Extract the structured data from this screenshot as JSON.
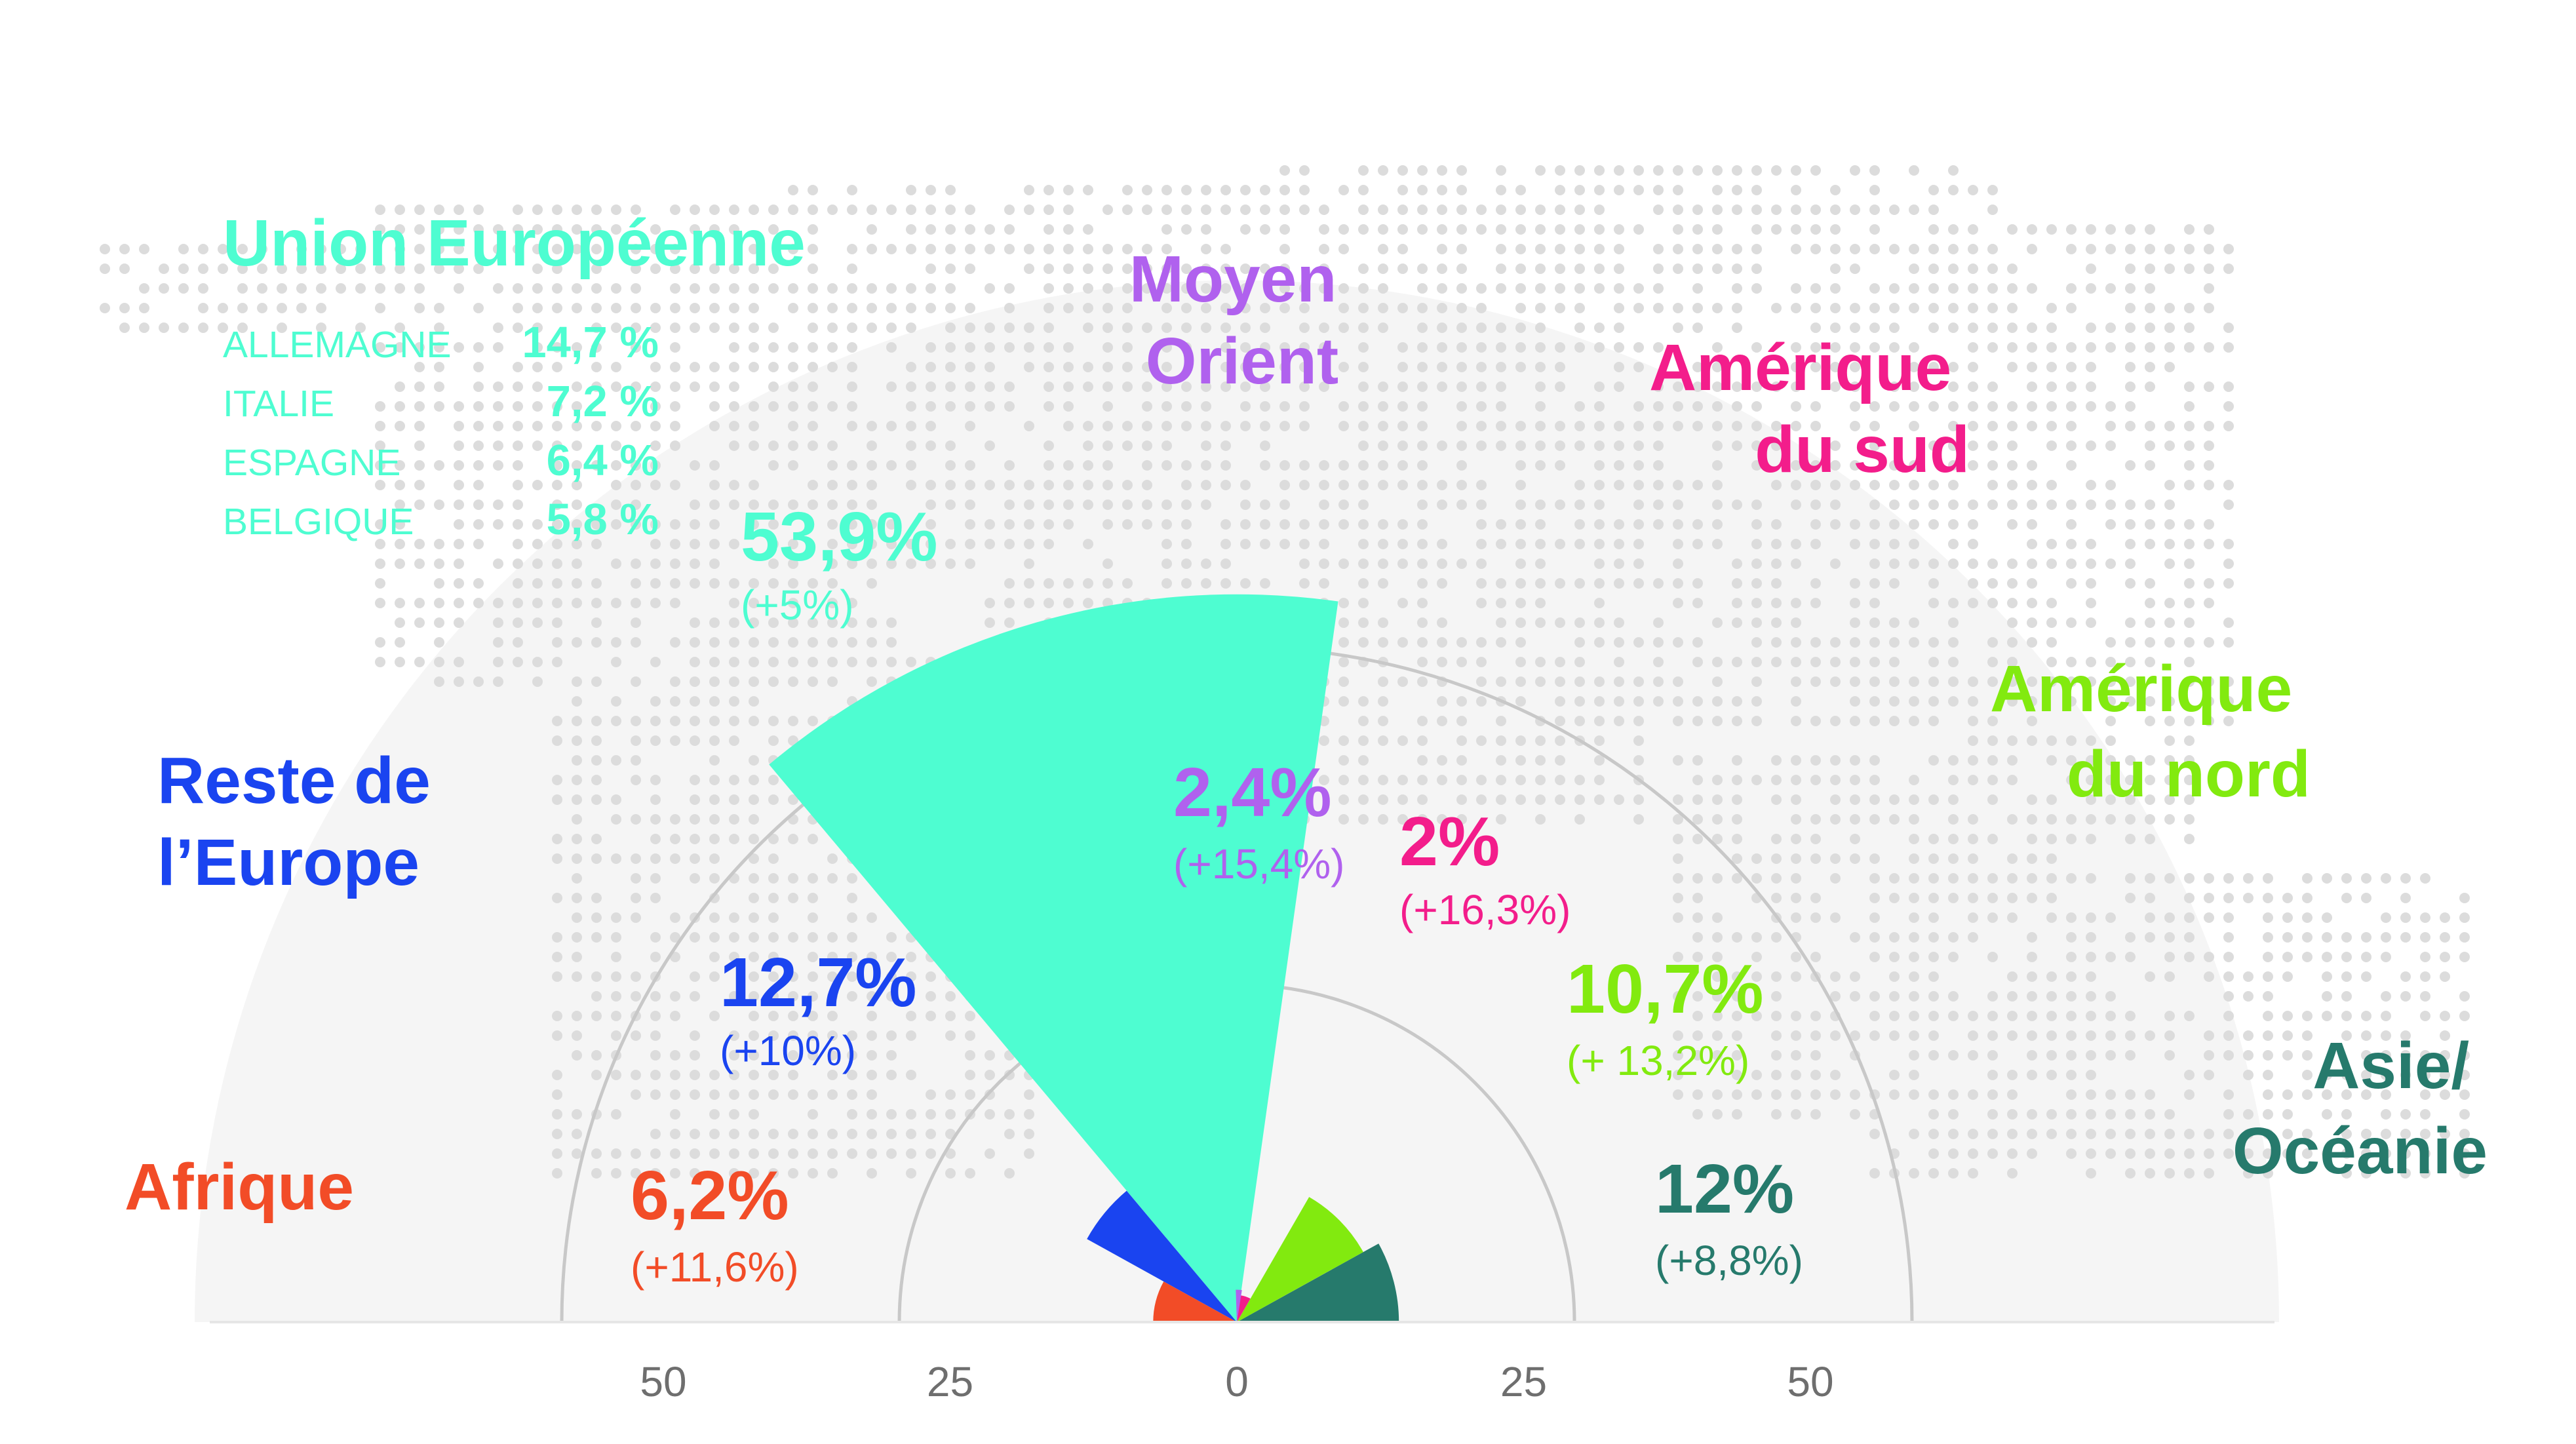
{
  "chart_data": {
    "type": "polar-area",
    "radial_ticks": [
      "50",
      "25",
      "0",
      "25",
      "50"
    ],
    "segments": [
      {
        "id": "afrique",
        "region": [
          "Afrique"
        ],
        "value": 6.2,
        "label": "6,2%",
        "change": "(+11,6%)",
        "color": "#f24c27"
      },
      {
        "id": "reste-europe",
        "region": [
          "Reste de",
          "l’Europe"
        ],
        "value": 12.7,
        "label": "12,7%",
        "change": "(+10%)",
        "color": "#1a44f0"
      },
      {
        "id": "ue",
        "region": [
          "Union Européenne"
        ],
        "value": 53.9,
        "label": "53,9%",
        "change": "(+5%)",
        "color": "#4efdd1"
      },
      {
        "id": "moyen-orient",
        "region": [
          "Moyen",
          "Orient"
        ],
        "value": 2.4,
        "label": "2,4%",
        "change": "(+15,4%)",
        "color": "#b061ee"
      },
      {
        "id": "amerique-sud",
        "region": [
          "Amérique",
          "du sud"
        ],
        "value": 2,
        "label": "2%",
        "change": "(+16,3%)",
        "color": "#f31d8b"
      },
      {
        "id": "amerique-nord",
        "region": [
          "Amérique",
          "du nord"
        ],
        "value": 10.7,
        "label": "10,7%",
        "change": "(+ 13,2%)",
        "color": "#82ea0f"
      },
      {
        "id": "asie-oceanie",
        "region": [
          "Asie/",
          "Océanie"
        ],
        "value": 12,
        "label": "12%",
        "change": "(+8,8%)",
        "color": "#267a6c"
      }
    ],
    "eu_breakdown": [
      {
        "country": "ALLEMAGNE",
        "value": "14,7 %"
      },
      {
        "country": "ITALIE",
        "value": "7,2 %"
      },
      {
        "country": "ESPAGNE",
        "value": "6,4 %"
      },
      {
        "country": "BELGIQUE",
        "value": "5,8 %"
      }
    ]
  },
  "colors": {
    "map_dots": "#dcdcdc",
    "halo": "#f5f5f5",
    "axis": "#c8c8c8",
    "tick_text": "#6e6e6e"
  }
}
